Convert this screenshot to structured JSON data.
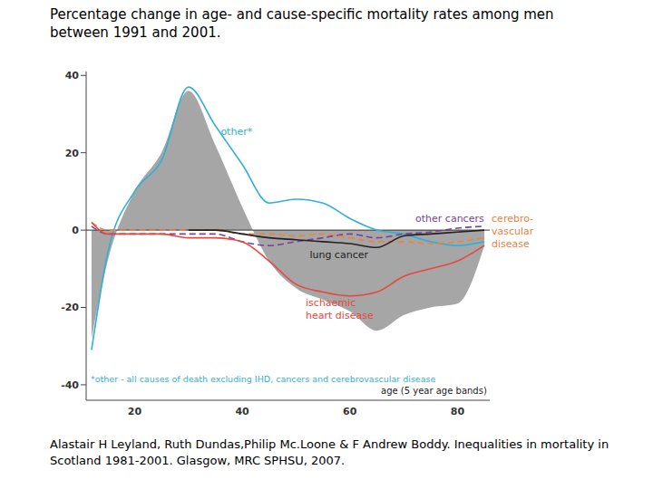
{
  "chart_data": {
    "type": "line",
    "title": "Percentage change in age- and cause-specific mortality rates among men between 1991 and 2001.",
    "x_label": "age (5 year age bands)",
    "footnote": "*other - all causes of death excluding IHD, cancers and cerebrovascular disease",
    "source": "Alastair H Leyland, Ruth Dundas,Philip Mc.Loone & F Andrew Boddy. Inequalities in mortality in Scotland 1981-2001. Glasgow, MRC SPHSU, 2007.",
    "x": [
      12,
      15,
      20,
      25,
      30,
      35,
      40,
      45,
      50,
      55,
      60,
      65,
      70,
      75,
      80,
      85
    ],
    "xlim": [
      11,
      86
    ],
    "xticks": [
      20,
      40,
      60,
      80
    ],
    "ylim": [
      -44,
      41
    ],
    "yticks": [
      -40,
      -20,
      0,
      20,
      40
    ],
    "series": [
      {
        "type": "area",
        "color": "#a6a6a6",
        "values": [
          -28,
          -8,
          10,
          20,
          36,
          22,
          6,
          -8,
          -15,
          -18,
          -21,
          -26,
          -22,
          -20,
          -19,
          -4
        ]
      },
      {
        "name": "other*",
        "type": "line",
        "color": "#2fb0d6",
        "values": [
          -31,
          -6,
          10,
          18,
          37,
          27,
          17,
          7,
          8,
          7,
          3,
          0,
          -1,
          -3,
          -4,
          -3
        ]
      },
      {
        "name": "other cancers",
        "type": "line",
        "color": "#7b3f99",
        "line_style": "dashed",
        "values": [
          1,
          -1,
          -1,
          -1,
          -1,
          -1,
          -3,
          -4,
          -3,
          -2,
          -1,
          -2,
          -1,
          -0.5,
          0.5,
          1
        ]
      },
      {
        "name": "cerebro-vascular disease",
        "type": "line",
        "color": "#f08040",
        "line_style": "dashed",
        "values": [
          2,
          0,
          0,
          0,
          0,
          0,
          -1,
          -1,
          -1.5,
          -1,
          -2,
          -3,
          -3,
          -3.5,
          -3,
          -2
        ]
      },
      {
        "name": "lung cancer",
        "type": "line",
        "color": "#222222",
        "values": [
          null,
          null,
          null,
          null,
          0,
          0,
          -1,
          -2,
          -2.5,
          -3,
          -3.5,
          -4.5,
          -1.5,
          -1,
          -0.5,
          0
        ]
      },
      {
        "name": "ischaemic heart disease",
        "type": "line",
        "color": "#e8473f",
        "values": [
          2,
          -1,
          -1,
          -1,
          -2,
          -2,
          -3,
          -8,
          -14,
          -16,
          -17,
          -16,
          -12,
          -10,
          -8,
          -4
        ]
      }
    ]
  }
}
